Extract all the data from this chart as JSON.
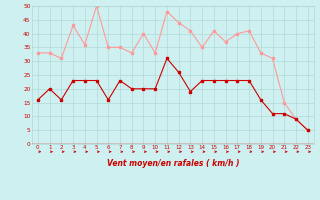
{
  "hours": [
    0,
    1,
    2,
    3,
    4,
    5,
    6,
    7,
    8,
    9,
    10,
    11,
    12,
    13,
    14,
    15,
    16,
    17,
    18,
    19,
    20,
    21,
    22,
    23
  ],
  "wind_avg": [
    16,
    20,
    16,
    23,
    23,
    23,
    16,
    23,
    20,
    20,
    20,
    31,
    26,
    19,
    23,
    23,
    23,
    23,
    23,
    16,
    11,
    11,
    9,
    5
  ],
  "wind_gust": [
    33,
    33,
    31,
    43,
    36,
    50,
    35,
    35,
    33,
    40,
    33,
    48,
    44,
    41,
    35,
    41,
    37,
    40,
    41,
    33,
    31,
    15,
    9,
    5
  ],
  "ylim": [
    0,
    50
  ],
  "yticks": [
    0,
    5,
    10,
    15,
    20,
    25,
    30,
    35,
    40,
    45,
    50
  ],
  "xlabel": "Vent moyen/en rafales ( km/h )",
  "bg_color": "#cff0f0",
  "grid_color": "#b0d8d8",
  "avg_color": "#cc0000",
  "gust_color": "#ff9999",
  "tick_color": "#cc0000",
  "label_color": "#cc0000",
  "arrow_color": "#cc0000"
}
